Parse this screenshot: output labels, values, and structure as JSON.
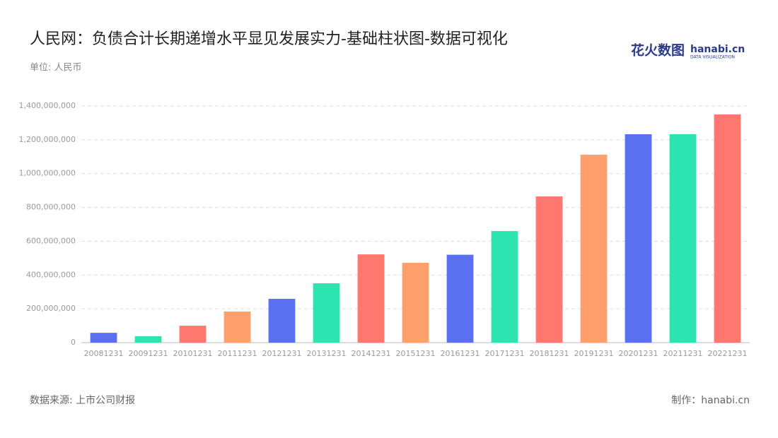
{
  "chart_data": {
    "type": "bar",
    "title": "人民网：负债合计长期递增水平显见发展实力-基础柱状图-数据可视化",
    "subtitle": "单位: 人民币",
    "source": "数据来源: 上市公司财报",
    "credit": "制作：hanabi.cn",
    "logo": {
      "name": "花火数图",
      "site": "hanabi.cn",
      "tagline": "DATA VISUALIZATION"
    },
    "categories": [
      "20081231",
      "20091231",
      "20101231",
      "20111231",
      "20121231",
      "20131231",
      "20141231",
      "20151231",
      "20161231",
      "20171231",
      "20181231",
      "20191231",
      "20201231",
      "20211231",
      "20221231"
    ],
    "values": [
      58000000,
      38000000,
      100000000,
      184000000,
      259000000,
      351000000,
      522000000,
      472000000,
      520000000,
      660000000,
      865000000,
      1112000000,
      1233000000,
      1233000000,
      1350000000
    ],
    "colors": [
      "#5b70f0",
      "#2de5b0",
      "#ff7870",
      "#ffa06c",
      "#5b70f0",
      "#2de5b0",
      "#ff7870",
      "#ffa06c",
      "#5b70f0",
      "#2de5b0",
      "#ff7870",
      "#ffa06c",
      "#5b70f0",
      "#2de5b0",
      "#ff7870"
    ],
    "ylim": [
      0,
      1400000000
    ],
    "yticks": [
      0,
      {
        "value": 200000000,
        "label": "200,000,000"
      },
      {
        "value": 400000000,
        "label": "400,000,000"
      },
      {
        "value": 600000000,
        "label": "600,000,000"
      },
      {
        "value": 800000000,
        "label": "800,000,000"
      },
      {
        "value": 1000000000,
        "label": "1,000,000,000"
      },
      {
        "value": 1200000000,
        "label": "1,200,000,000"
      },
      {
        "value": 1400000000,
        "label": "1,400,000,000"
      }
    ],
    "grid": true
  }
}
